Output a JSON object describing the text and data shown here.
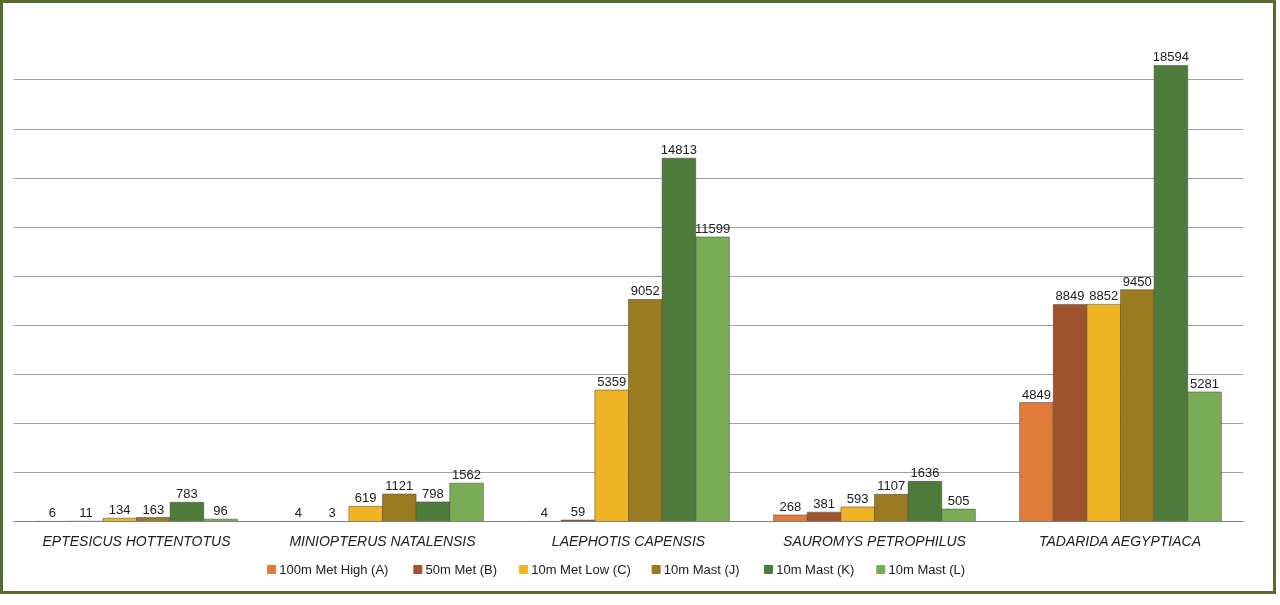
{
  "chart_data": {
    "type": "bar",
    "categories": [
      "EPTESICUS HOTTENTOTUS",
      "MINIOPTERUS NATALENSIS",
      "LAEPHOTIS CAPENSIS",
      "SAUROMYS PETROPHILUS",
      "TADARIDA AEGYPTIACA"
    ],
    "series": [
      {
        "name": "100m Met High (A)",
        "color": "#e07b39",
        "values": [
          6,
          4,
          4,
          268,
          4849
        ]
      },
      {
        "name": "50m Met (B)",
        "color": "#a0522d",
        "values": [
          11,
          3,
          59,
          381,
          8849
        ]
      },
      {
        "name": "10m Met Low (C)",
        "color": "#f0b323",
        "values": [
          134,
          619,
          5359,
          593,
          8852
        ]
      },
      {
        "name": "10m Mast (J)",
        "color": "#9a7b1f",
        "values": [
          163,
          1121,
          9052,
          1107,
          9450
        ]
      },
      {
        "name": "10m Mast (K)",
        "color": "#4e7a3a",
        "values": [
          783,
          798,
          14813,
          1636,
          18594
        ]
      },
      {
        "name": "10m Mast (L)",
        "color": "#7aab55",
        "values": [
          96,
          1562,
          11599,
          505,
          5281
        ]
      }
    ],
    "yticks": [
      {
        "value": 0,
        "label": null
      },
      {
        "value": 2000,
        "label": null
      },
      {
        "value": 4000,
        "label": null
      },
      {
        "value": 6000,
        "label": null
      },
      {
        "value": 8000,
        "label": null
      },
      {
        "value": 10000,
        "label": null
      },
      {
        "value": 12000,
        "label": null
      },
      {
        "value": 14000,
        "label": null
      },
      {
        "value": 16000,
        "label": null
      },
      {
        "value": 18000,
        "label": null
      }
    ],
    "tick_labels": "x",
    "grid": "y",
    "legend": "bottom",
    "data_labels": true
  }
}
